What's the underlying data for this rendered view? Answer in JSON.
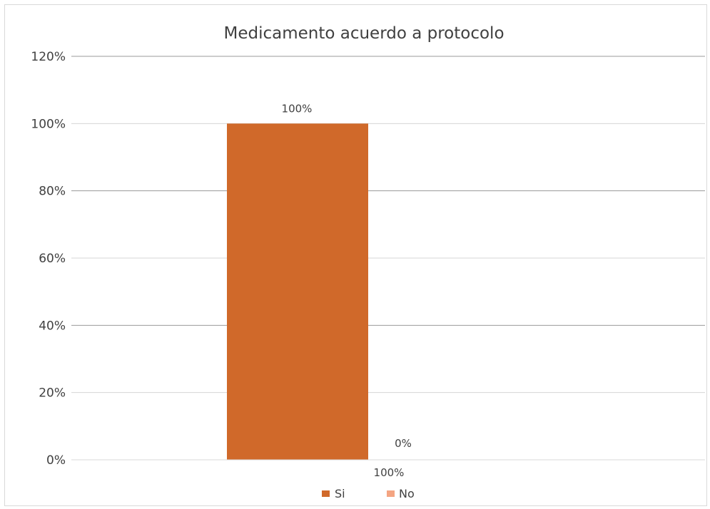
{
  "chart_data": {
    "type": "bar",
    "title": "Medicamento acuerdo a protocolo",
    "categories": [
      "100%"
    ],
    "series": [
      {
        "name": "Si",
        "values": [
          1.0
        ],
        "label": "100%",
        "color": "#d0692a"
      },
      {
        "name": "No",
        "values": [
          0.0
        ],
        "label": "0%",
        "color": "#f4a582"
      }
    ],
    "ylim": [
      0,
      1.2
    ],
    "yticks": [
      "0%",
      "20%",
      "40%",
      "60%",
      "80%",
      "100%",
      "120%"
    ],
    "grid": true,
    "legend": "bottom",
    "xlabel": "",
    "ylabel": ""
  }
}
